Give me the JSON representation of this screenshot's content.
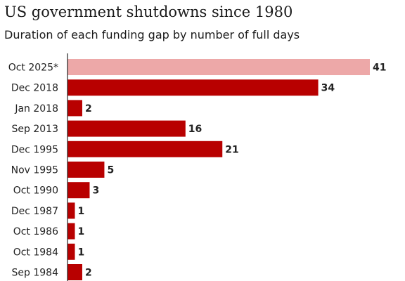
{
  "chart_data": {
    "type": "bar",
    "orientation": "horizontal",
    "title": "US government shutdowns since 1980",
    "subtitle": "Duration of each funding gap by number of full days",
    "categories": [
      "Oct 2025*",
      "Dec 2018",
      "Jan 2018",
      "Sep 2013",
      "Dec 1995",
      "Nov 1995",
      "Oct 1990",
      "Dec 1987",
      "Oct 1986",
      "Oct 1984",
      "Sep 1984"
    ],
    "values": [
      41,
      34,
      2,
      16,
      21,
      5,
      3,
      1,
      1,
      1,
      2
    ],
    "data_labels": [
      "41",
      "34",
      "2",
      "16",
      "21",
      "5",
      "3",
      "1",
      "1",
      "1",
      "2"
    ],
    "xlim": [
      0,
      41
    ],
    "grid": false,
    "legend": "none",
    "colors": {
      "bar": "#b80000",
      "highlight": "#eda8a8",
      "axis": "#222222",
      "text": "#222222"
    },
    "highlight_index": 0
  }
}
